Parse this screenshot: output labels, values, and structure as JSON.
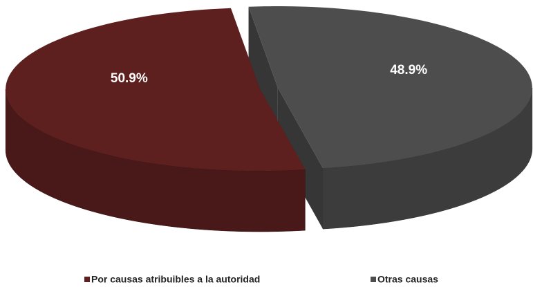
{
  "chart_data": {
    "type": "pie",
    "categories": [
      "Por causas atribuibles a la autoridad",
      "Otras causas"
    ],
    "values": [
      50.9,
      48.9
    ],
    "value_labels": [
      "50.9%",
      "48.9%"
    ],
    "colors": [
      "#5e1f1f",
      "#4d4d4d"
    ]
  }
}
